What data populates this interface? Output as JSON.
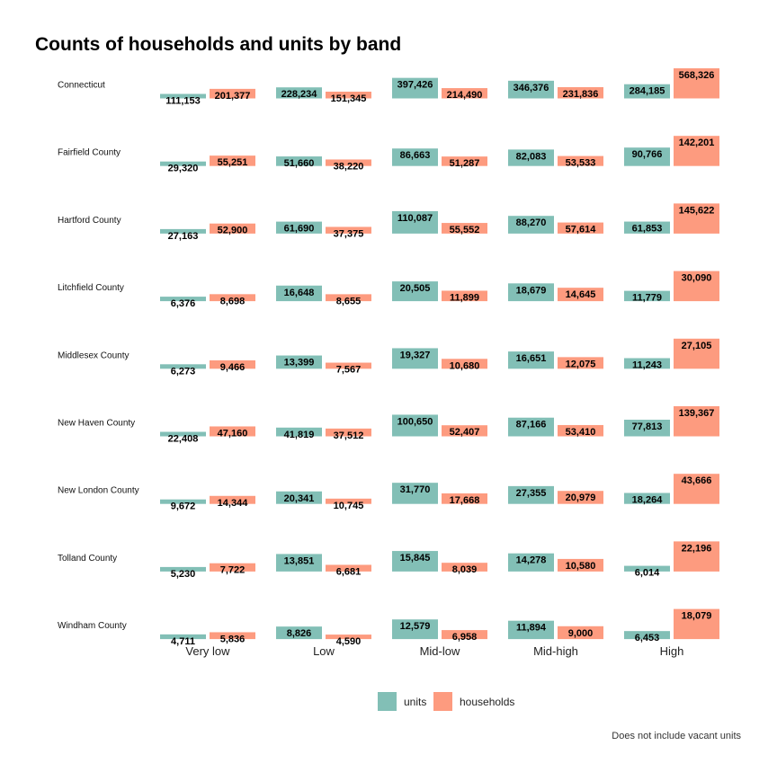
{
  "chart_data": {
    "type": "bar",
    "title": "Counts of households and units by band",
    "caption": "Does not include vacant units",
    "categories": [
      "Very low",
      "Low",
      "Mid-low",
      "Mid-high",
      "High"
    ],
    "legend": {
      "position": "bottom",
      "entries": [
        "units",
        "households"
      ]
    },
    "colors": {
      "units": "#82bfb6",
      "households": "#fd9b7f"
    },
    "facets": [
      {
        "name": "Connecticut",
        "series": [
          {
            "name": "units",
            "values": [
              111153,
              228234,
              397426,
              346376,
              284185
            ]
          },
          {
            "name": "households",
            "values": [
              201377,
              151345,
              214490,
              231836,
              568326
            ]
          }
        ]
      },
      {
        "name": "Fairfield County",
        "series": [
          {
            "name": "units",
            "values": [
              29320,
              51660,
              86663,
              82083,
              90766
            ]
          },
          {
            "name": "households",
            "values": [
              55251,
              38220,
              51287,
              53533,
              142201
            ]
          }
        ]
      },
      {
        "name": "Hartford County",
        "series": [
          {
            "name": "units",
            "values": [
              27163,
              61690,
              110087,
              88270,
              61853
            ]
          },
          {
            "name": "households",
            "values": [
              52900,
              37375,
              55552,
              57614,
              145622
            ]
          }
        ]
      },
      {
        "name": "Litchfield County",
        "series": [
          {
            "name": "units",
            "values": [
              6376,
              16648,
              20505,
              18679,
              11779
            ]
          },
          {
            "name": "households",
            "values": [
              8698,
              8655,
              11899,
              14645,
              30090
            ]
          }
        ]
      },
      {
        "name": "Middlesex County",
        "series": [
          {
            "name": "units",
            "values": [
              6273,
              13399,
              19327,
              16651,
              11243
            ]
          },
          {
            "name": "households",
            "values": [
              9466,
              7567,
              10680,
              12075,
              27105
            ]
          }
        ]
      },
      {
        "name": "New Haven County",
        "series": [
          {
            "name": "units",
            "values": [
              22408,
              41819,
              100650,
              87166,
              77813
            ]
          },
          {
            "name": "households",
            "values": [
              47160,
              37512,
              52407,
              53410,
              139367
            ]
          }
        ]
      },
      {
        "name": "New London County",
        "series": [
          {
            "name": "units",
            "values": [
              9672,
              20341,
              31770,
              27355,
              18264
            ]
          },
          {
            "name": "households",
            "values": [
              14344,
              10745,
              17668,
              20979,
              43666
            ]
          }
        ]
      },
      {
        "name": "Tolland County",
        "series": [
          {
            "name": "units",
            "values": [
              5230,
              13851,
              15845,
              14278,
              6014
            ]
          },
          {
            "name": "households",
            "values": [
              7722,
              6681,
              8039,
              10580,
              22196
            ]
          }
        ]
      },
      {
        "name": "Windham County",
        "series": [
          {
            "name": "units",
            "values": [
              4711,
              8826,
              12579,
              11894,
              6453
            ]
          },
          {
            "name": "households",
            "values": [
              5836,
              4590,
              6958,
              9000,
              18079
            ]
          }
        ]
      }
    ]
  }
}
